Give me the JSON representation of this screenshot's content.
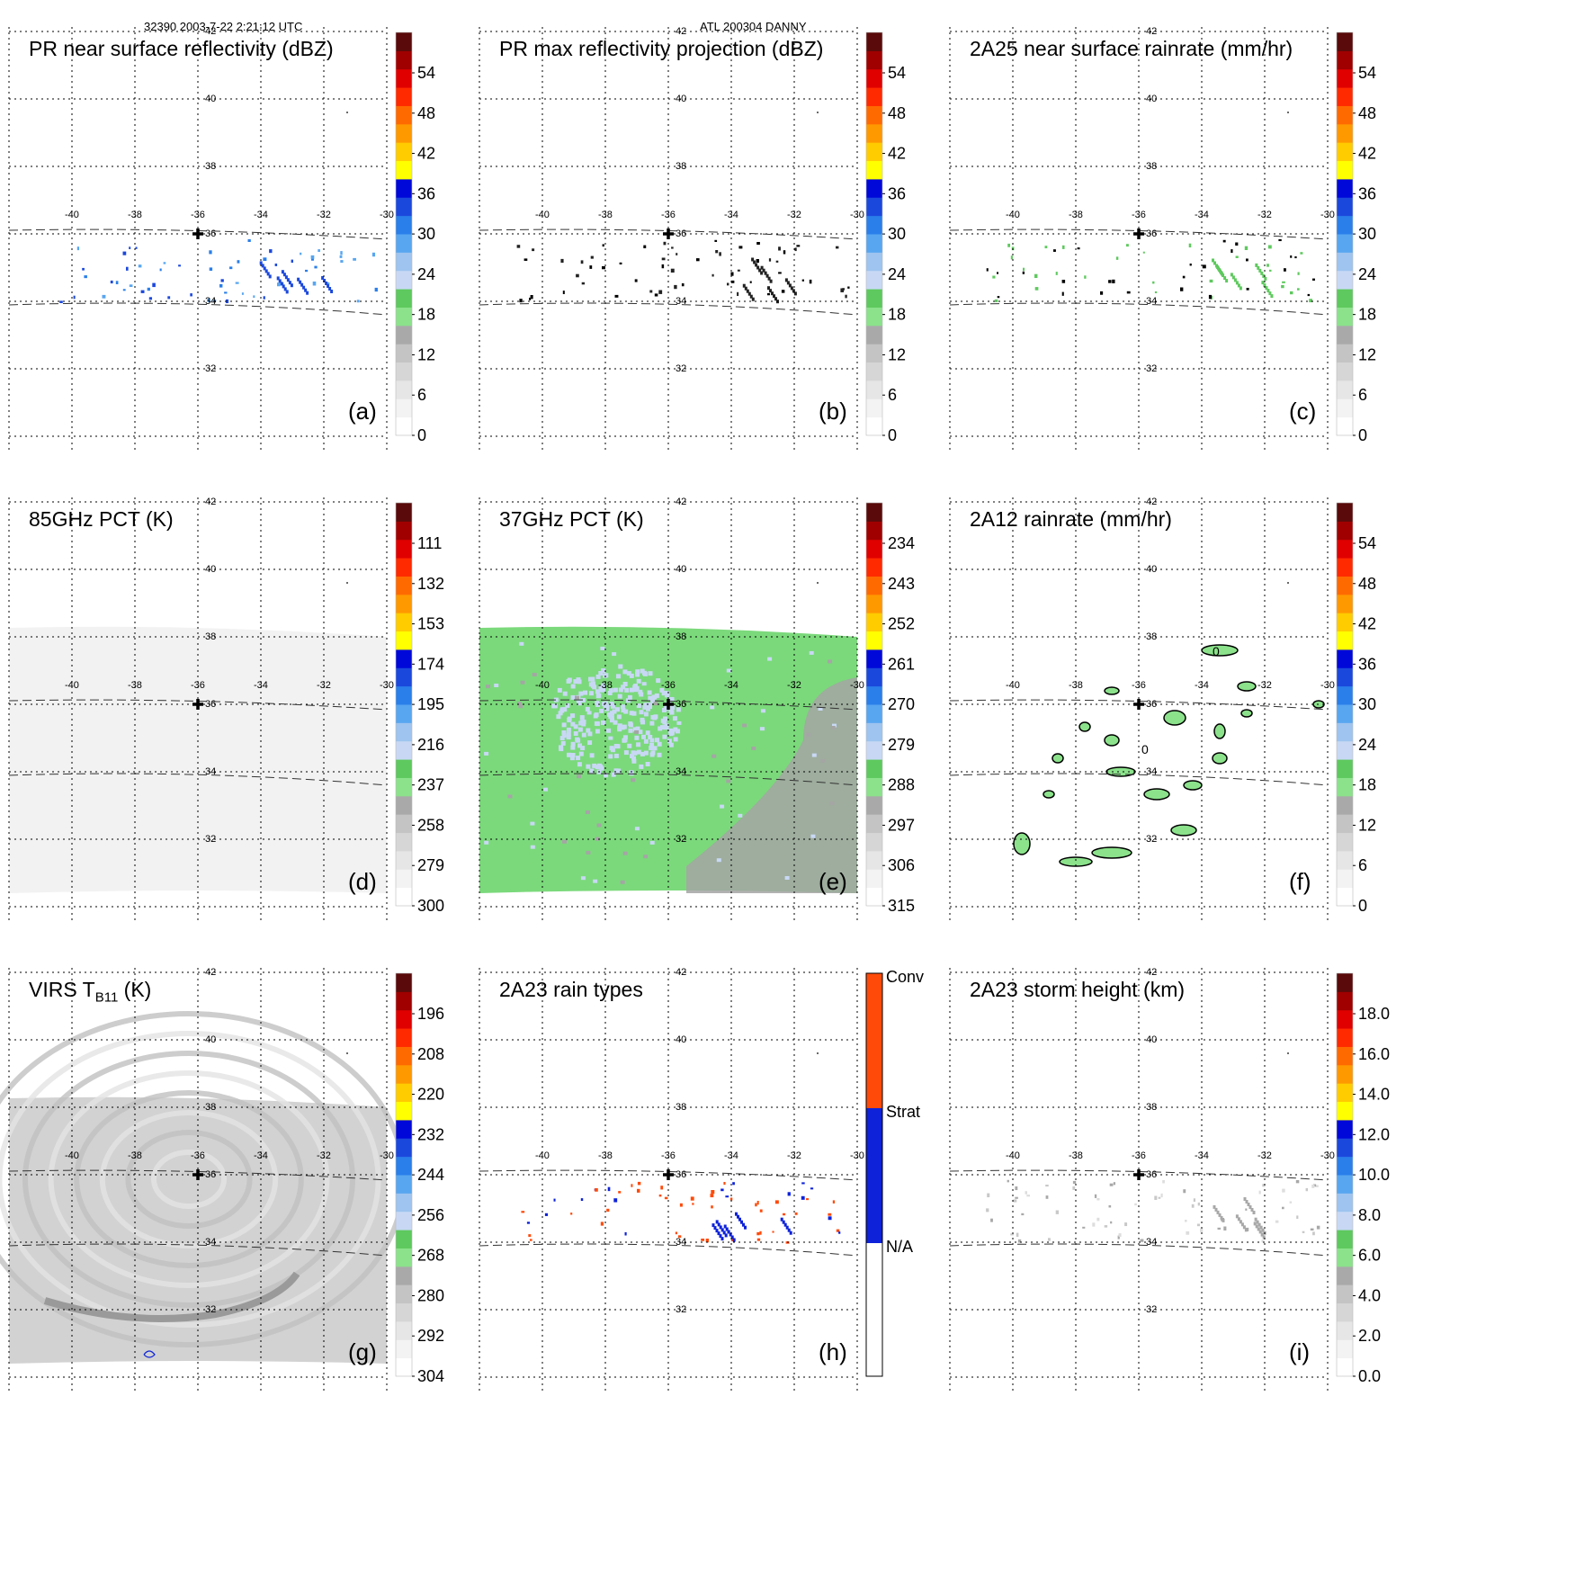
{
  "header": {
    "left": "32390 2003-7-22 2:21:12 UTC",
    "center": "ATL 200304 DANNY"
  },
  "colors": {
    "grid": "#000000",
    "gray_scale": [
      "#ffffff",
      "#f0f0f0",
      "#dddddd",
      "#c8c8c8",
      "#a8a8a8"
    ],
    "green_scale": [
      "#8be28b",
      "#5ec95e"
    ],
    "blue_scale": [
      "#c8d8f4",
      "#9ec4ef",
      "#58a6f0",
      "#2a7fea",
      "#1b48dc",
      "#0008d9"
    ],
    "warm_scale": [
      "#ffff00",
      "#ffcc00",
      "#ff9900",
      "#ff6a00",
      "#ff2a00",
      "#e00000",
      "#b00000",
      "#8a1010",
      "#6a0d0d",
      "#4a0a0a"
    ],
    "rain_types": {
      "na": "#ffffff",
      "strat": "#0d22d9",
      "conv": "#ff4a0a"
    }
  },
  "map": {
    "lon_labels": [
      "-40",
      "-38",
      "-36",
      "-34",
      "-32",
      "-30"
    ],
    "lat_labels": [
      "42",
      "40",
      "38",
      "36",
      "34",
      "32"
    ],
    "storm_center": {
      "lon": -36.0,
      "lat": 35.9
    }
  },
  "chart_data": [
    {
      "type": "heatmap",
      "panel": "a",
      "title": "PR near surface reflectivity (dBZ)",
      "label": "(a)",
      "colorbar": {
        "ticks": [
          "54",
          "48",
          "42",
          "36",
          "30",
          "24",
          "18",
          "12",
          "6",
          "0"
        ],
        "range": [
          0,
          60
        ]
      },
      "swath": "pr"
    },
    {
      "type": "heatmap",
      "panel": "b",
      "title": "PR max reflectivity projection (dBZ)",
      "label": "(b)",
      "colorbar": {
        "ticks": [
          "54",
          "48",
          "42",
          "36",
          "30",
          "24",
          "18",
          "12",
          "6",
          "0"
        ],
        "range": [
          0,
          60
        ]
      },
      "swath": "pr"
    },
    {
      "type": "heatmap",
      "panel": "c",
      "title": "2A25 near surface rainrate (mm/hr)",
      "label": "(c)",
      "colorbar": {
        "ticks": [
          "54",
          "48",
          "42",
          "36",
          "30",
          "24",
          "18",
          "12",
          "6",
          "0"
        ],
        "range": [
          0,
          60
        ]
      },
      "swath": "pr"
    },
    {
      "type": "heatmap",
      "panel": "d",
      "title": "85GHz PCT (K)",
      "label": "(d)",
      "colorbar": {
        "ticks": [
          "111",
          "132",
          "153",
          "174",
          "195",
          "216",
          "237",
          "258",
          "279",
          "300"
        ],
        "range": [
          90,
          300
        ]
      },
      "swath": "tmi"
    },
    {
      "type": "heatmap",
      "panel": "e",
      "title": "37GHz PCT (K)",
      "label": "(e)",
      "colorbar": {
        "ticks": [
          "234",
          "243",
          "252",
          "261",
          "270",
          "279",
          "288",
          "297",
          "306",
          "315"
        ],
        "range": [
          225,
          315
        ]
      },
      "swath": "tmi"
    },
    {
      "type": "heatmap",
      "panel": "f",
      "title": "2A12 rainrate (mm/hr)",
      "label": "(f)",
      "colorbar": {
        "ticks": [
          "54",
          "48",
          "42",
          "36",
          "30",
          "24",
          "18",
          "12",
          "6",
          "0"
        ],
        "range": [
          0,
          60
        ]
      },
      "swath": "tmi"
    },
    {
      "type": "heatmap",
      "panel": "g",
      "title": "VIRS T",
      "title_sub": "B11",
      "title_suffix": " (K)",
      "label": "(g)",
      "colorbar": {
        "ticks": [
          "196",
          "208",
          "220",
          "232",
          "244",
          "256",
          "268",
          "280",
          "292",
          "304"
        ],
        "range": [
          184,
          304
        ]
      },
      "swath": "virs"
    },
    {
      "type": "heatmap",
      "panel": "h",
      "title": "2A23 rain types",
      "label": "(h)",
      "colorbar": {
        "ticks": [
          "Conv",
          "Strat",
          "N/A"
        ],
        "categories": [
          "N/A",
          "Strat",
          "Conv"
        ]
      },
      "swath": "pr"
    },
    {
      "type": "heatmap",
      "panel": "i",
      "title": "2A23 storm height (km)",
      "label": "(i)",
      "colorbar": {
        "ticks": [
          "18.0",
          "16.0",
          "14.0",
          "12.0",
          "10.0",
          "8.0",
          "6.0",
          "4.0",
          "2.0",
          "0.0"
        ],
        "range": [
          0,
          20
        ]
      },
      "swath": "pr"
    }
  ]
}
